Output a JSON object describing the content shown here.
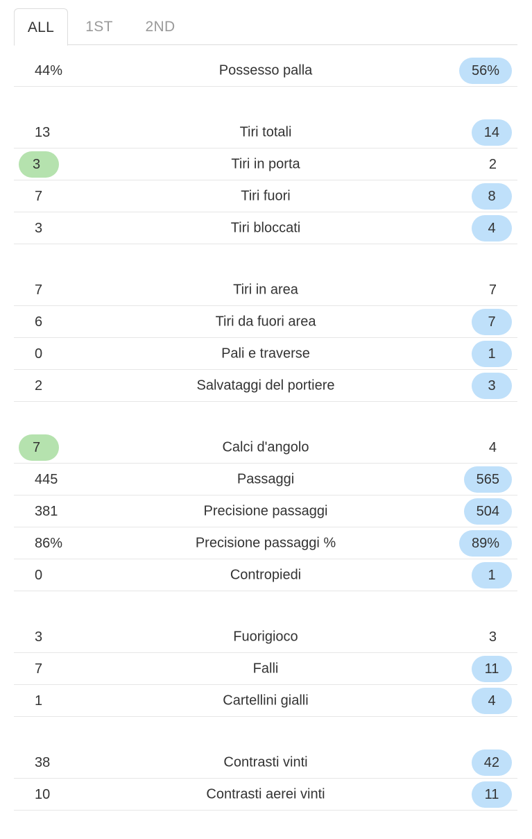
{
  "tabs": [
    {
      "label": "ALL",
      "active": true
    },
    {
      "label": "1ST",
      "active": false
    },
    {
      "label": "2ND",
      "active": false
    }
  ],
  "colors": {
    "home_win_highlight": "#b5e2ae",
    "away_win_highlight": "#bfe0fa",
    "divider": "#e6e6e6",
    "text": "#333333"
  },
  "groups": [
    {
      "rows": [
        {
          "home": "44%",
          "label": "Possesso palla",
          "away": "56%",
          "highlight": "away"
        }
      ]
    },
    {
      "rows": [
        {
          "home": "13",
          "label": "Tiri totali",
          "away": "14",
          "highlight": "away"
        },
        {
          "home": "3",
          "label": "Tiri in porta",
          "away": "2",
          "highlight": "home"
        },
        {
          "home": "7",
          "label": "Tiri fuori",
          "away": "8",
          "highlight": "away"
        },
        {
          "home": "3",
          "label": "Tiri bloccati",
          "away": "4",
          "highlight": "away"
        }
      ]
    },
    {
      "rows": [
        {
          "home": "7",
          "label": "Tiri in area",
          "away": "7",
          "highlight": "none"
        },
        {
          "home": "6",
          "label": "Tiri da fuori area",
          "away": "7",
          "highlight": "away"
        },
        {
          "home": "0",
          "label": "Pali e traverse",
          "away": "1",
          "highlight": "away"
        },
        {
          "home": "2",
          "label": "Salvataggi del portiere",
          "away": "3",
          "highlight": "away"
        }
      ]
    },
    {
      "rows": [
        {
          "home": "7",
          "label": "Calci d'angolo",
          "away": "4",
          "highlight": "home"
        },
        {
          "home": "445",
          "label": "Passaggi",
          "away": "565",
          "highlight": "away"
        },
        {
          "home": "381",
          "label": "Precisione passaggi",
          "away": "504",
          "highlight": "away"
        },
        {
          "home": "86%",
          "label": "Precisione passaggi %",
          "away": "89%",
          "highlight": "away"
        },
        {
          "home": "0",
          "label": "Contropiedi",
          "away": "1",
          "highlight": "away"
        }
      ]
    },
    {
      "rows": [
        {
          "home": "3",
          "label": "Fuorigioco",
          "away": "3",
          "highlight": "none"
        },
        {
          "home": "7",
          "label": "Falli",
          "away": "11",
          "highlight": "away"
        },
        {
          "home": "1",
          "label": "Cartellini gialli",
          "away": "4",
          "highlight": "away"
        }
      ]
    },
    {
      "rows": [
        {
          "home": "38",
          "label": "Contrasti vinti",
          "away": "42",
          "highlight": "away"
        },
        {
          "home": "10",
          "label": "Contrasti aerei vinti",
          "away": "11",
          "highlight": "away"
        }
      ]
    }
  ]
}
